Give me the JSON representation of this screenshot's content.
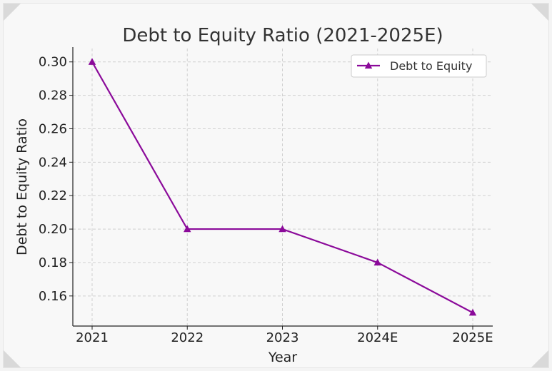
{
  "chart_data": {
    "type": "line",
    "title": "Debt to Equity Ratio (2021-2025E)",
    "xlabel": "Year",
    "ylabel": "Debt to Equity Ratio",
    "categories": [
      "2021",
      "2022",
      "2023",
      "2024E",
      "2025E"
    ],
    "series": [
      {
        "name": "Debt to Equity",
        "values": [
          0.3,
          0.2,
          0.2,
          0.18,
          0.15
        ],
        "color": "#8b0a9a",
        "marker": "triangle"
      }
    ],
    "yticks": [
      "0.16",
      "0.18",
      "0.20",
      "0.22",
      "0.24",
      "0.26",
      "0.28",
      "0.30"
    ],
    "ylim": [
      0.142,
      0.308
    ],
    "grid": true,
    "legend_position": "top-right"
  }
}
